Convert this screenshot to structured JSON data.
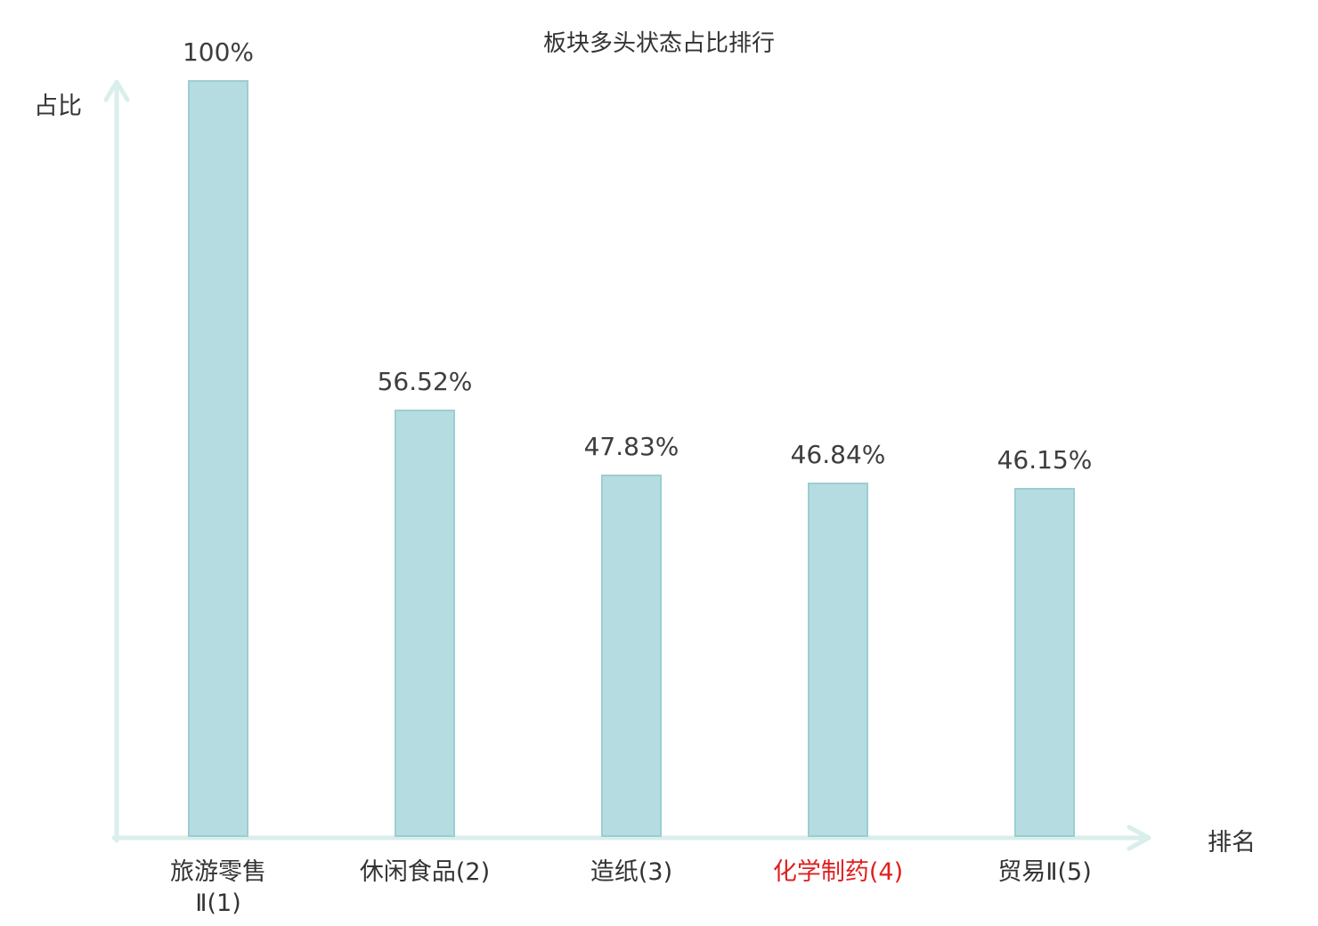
{
  "chart_data": {
    "type": "bar",
    "title": "板块多头状态占比排行",
    "xlabel": "排名",
    "ylabel": "占比",
    "categories": [
      "旅游零售\nⅡ(1)",
      "休闲食品(2)",
      "造纸(3)",
      "化学制药(4)",
      "贸易Ⅱ(5)"
    ],
    "values": [
      100,
      56.52,
      47.83,
      46.84,
      46.15
    ],
    "value_labels": [
      "100%",
      "56.52%",
      "47.83%",
      "46.84%",
      "46.15%"
    ],
    "highlight_index": 3,
    "ylim": [
      0,
      100
    ],
    "grid": "off",
    "legend": "none",
    "bar_color": "#b5dde1",
    "bar_border_color": "#9bcdd3",
    "axis_color": "#daeeec",
    "text_color": "#333333",
    "highlight_label_color": "#e01f1f"
  }
}
